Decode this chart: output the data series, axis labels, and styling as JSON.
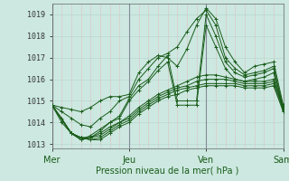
{
  "title": "",
  "xlabel": "Pression niveau de la mer( hPa )",
  "ylabel": "",
  "ylim": [
    1012.8,
    1019.5
  ],
  "xlim": [
    0,
    72
  ],
  "yticks": [
    1013,
    1014,
    1015,
    1016,
    1017,
    1018,
    1019
  ],
  "xtick_positions": [
    0,
    24,
    48,
    72
  ],
  "xtick_labels": [
    "Mer",
    "Jeu",
    "Ven",
    "Sam"
  ],
  "bg_color": "#cce8e0",
  "line_color": "#1a5c1a",
  "grid_color_h": "#b8d8cc",
  "grid_color_v": "#ddc8c8",
  "lines": [
    [
      0,
      1014.8,
      3,
      1014.7,
      6,
      1014.6,
      9,
      1014.5,
      12,
      1014.7,
      15,
      1015.0,
      18,
      1015.2,
      21,
      1015.2,
      24,
      1015.3,
      27,
      1016.3,
      30,
      1016.8,
      33,
      1017.1,
      36,
      1017.0,
      39,
      1016.6,
      42,
      1017.4,
      45,
      1018.5,
      48,
      1019.3,
      51,
      1018.8,
      54,
      1017.5,
      57,
      1016.8,
      60,
      1016.3,
      63,
      1016.6,
      66,
      1016.7,
      69,
      1016.8,
      72,
      1014.8
    ],
    [
      0,
      1014.8,
      3,
      1014.5,
      6,
      1014.2,
      9,
      1013.9,
      12,
      1013.8,
      15,
      1014.2,
      18,
      1014.5,
      21,
      1015.0,
      24,
      1015.2,
      27,
      1016.0,
      30,
      1016.5,
      33,
      1017.0,
      36,
      1017.2,
      39,
      1017.5,
      42,
      1018.2,
      45,
      1018.8,
      48,
      1019.2,
      51,
      1018.5,
      54,
      1017.0,
      57,
      1016.5,
      60,
      1016.2,
      63,
      1016.3,
      66,
      1016.4,
      69,
      1016.6,
      72,
      1014.7
    ],
    [
      0,
      1014.8,
      3,
      1014.2,
      6,
      1013.5,
      9,
      1013.2,
      12,
      1013.4,
      15,
      1013.7,
      18,
      1014.0,
      21,
      1014.3,
      24,
      1015.1,
      27,
      1015.7,
      30,
      1016.0,
      33,
      1016.6,
      36,
      1017.1,
      39,
      1015.0,
      42,
      1015.0,
      45,
      1015.0,
      48,
      1019.0,
      51,
      1018.0,
      54,
      1016.8,
      57,
      1016.3,
      60,
      1016.1,
      63,
      1016.2,
      66,
      1016.3,
      69,
      1016.5,
      72,
      1014.6
    ],
    [
      0,
      1014.8,
      3,
      1014.0,
      6,
      1013.5,
      9,
      1013.2,
      12,
      1013.3,
      15,
      1013.6,
      18,
      1014.0,
      21,
      1014.2,
      24,
      1015.0,
      27,
      1015.5,
      30,
      1015.9,
      33,
      1016.4,
      36,
      1016.8,
      39,
      1014.8,
      42,
      1014.8,
      45,
      1014.8,
      48,
      1018.5,
      51,
      1017.5,
      54,
      1016.5,
      57,
      1016.0,
      60,
      1015.9,
      63,
      1016.0,
      66,
      1016.1,
      69,
      1016.3,
      72,
      1014.5
    ],
    [
      0,
      1014.8,
      6,
      1013.5,
      9,
      1013.3,
      12,
      1013.3,
      15,
      1013.5,
      18,
      1013.8,
      21,
      1014.0,
      24,
      1014.3,
      27,
      1014.7,
      30,
      1015.0,
      33,
      1015.3,
      36,
      1015.5,
      39,
      1015.7,
      42,
      1015.9,
      45,
      1016.1,
      48,
      1016.2,
      51,
      1016.2,
      54,
      1016.1,
      57,
      1016.0,
      60,
      1015.9,
      63,
      1015.9,
      66,
      1015.9,
      69,
      1016.0,
      72,
      1014.8
    ],
    [
      0,
      1014.8,
      6,
      1013.5,
      9,
      1013.3,
      12,
      1013.3,
      15,
      1013.4,
      18,
      1013.7,
      21,
      1014.0,
      24,
      1014.2,
      27,
      1014.6,
      30,
      1014.9,
      33,
      1015.2,
      36,
      1015.4,
      39,
      1015.6,
      42,
      1015.7,
      45,
      1015.9,
      48,
      1016.0,
      51,
      1016.0,
      54,
      1016.0,
      57,
      1015.9,
      60,
      1015.8,
      63,
      1015.8,
      66,
      1015.8,
      69,
      1015.9,
      72,
      1014.7
    ],
    [
      0,
      1014.8,
      6,
      1013.5,
      9,
      1013.3,
      12,
      1013.2,
      15,
      1013.3,
      18,
      1013.6,
      21,
      1013.9,
      24,
      1014.1,
      27,
      1014.5,
      30,
      1014.8,
      33,
      1015.1,
      36,
      1015.3,
      39,
      1015.5,
      42,
      1015.6,
      45,
      1015.7,
      48,
      1015.8,
      51,
      1015.8,
      54,
      1015.8,
      57,
      1015.8,
      60,
      1015.7,
      63,
      1015.7,
      66,
      1015.7,
      69,
      1015.8,
      72,
      1014.6
    ],
    [
      0,
      1014.8,
      6,
      1013.5,
      9,
      1013.3,
      12,
      1013.2,
      15,
      1013.2,
      18,
      1013.5,
      21,
      1013.8,
      24,
      1014.0,
      27,
      1014.4,
      30,
      1014.7,
      33,
      1015.0,
      36,
      1015.2,
      39,
      1015.3,
      42,
      1015.5,
      45,
      1015.6,
      48,
      1015.7,
      51,
      1015.7,
      54,
      1015.7,
      57,
      1015.7,
      60,
      1015.6,
      63,
      1015.6,
      66,
      1015.6,
      69,
      1015.7,
      72,
      1014.5
    ]
  ],
  "vline_color": "#888899",
  "marker": "+"
}
